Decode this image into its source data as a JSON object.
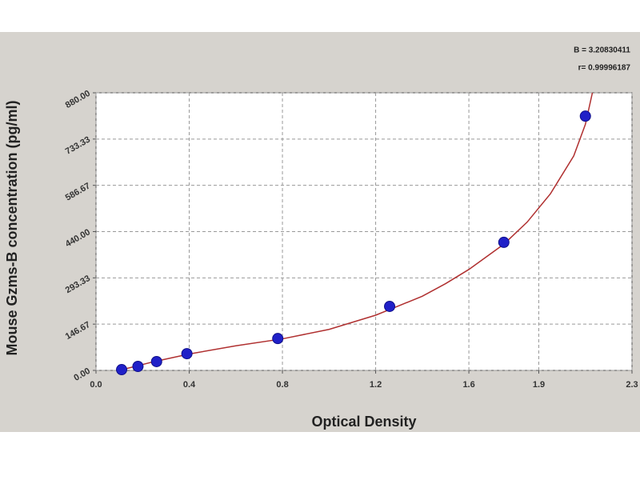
{
  "chart_data": {
    "type": "scatter",
    "x_label": "Optical Density",
    "y_label": "Mouse Gzms-B concentration (pg/ml)",
    "annotations": [
      "B = 3.20830411",
      "r= 0.99996187"
    ],
    "series": [
      {
        "color": "#2020c8",
        "x": [
          0.11,
          0.18,
          0.26,
          0.39,
          0.78,
          1.26,
          1.75,
          2.1
        ],
        "values": [
          2.5,
          12.7,
          28,
          53,
          101,
          203,
          406,
          806
        ]
      }
    ],
    "fit_curve": {
      "color": "#b03030",
      "x": [
        0.1,
        0.25,
        0.4,
        0.6,
        0.8,
        1.0,
        1.2,
        1.4,
        1.5,
        1.6,
        1.75,
        1.85,
        1.95,
        2.05,
        2.1,
        2.13
      ],
      "values": [
        0,
        28,
        52,
        78,
        100,
        130,
        175,
        235,
        275,
        320,
        400,
        470,
        560,
        680,
        780,
        880
      ]
    },
    "xlim": [
      0,
      2.3
    ],
    "xticks": [
      {
        "value": 0,
        "label": "0.0"
      },
      0.4,
      0.8,
      1.2,
      1.6,
      1.9,
      2.3
    ],
    "ylim": [
      0,
      880
    ],
    "yticks": [
      {
        "value": 0,
        "label": "0.00"
      },
      146.67,
      293.33,
      {
        "value": 440,
        "label": "440.00"
      },
      586.67,
      733.33,
      {
        "value": 880,
        "label": "880.00"
      }
    ],
    "grid": true
  }
}
